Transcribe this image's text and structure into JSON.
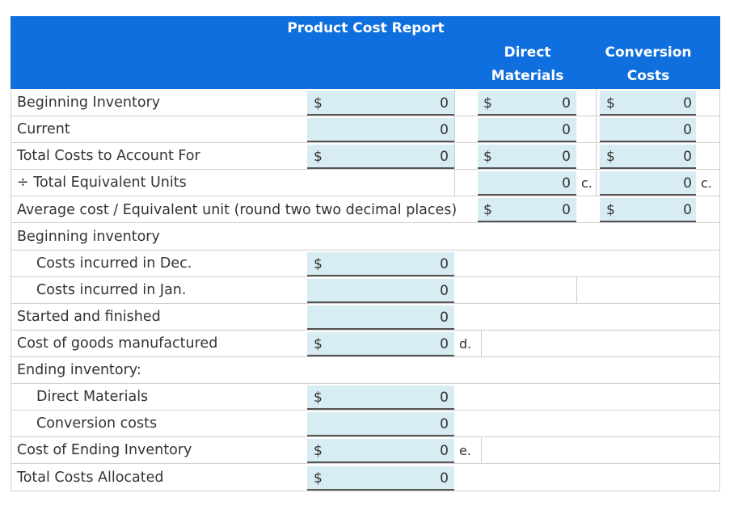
{
  "header": {
    "title": "Product Cost Report",
    "direct_materials_line1": "Direct",
    "direct_materials_line2": "Materials",
    "conversion_costs_line1": "Conversion",
    "conversion_costs_line2": "Costs"
  },
  "currency_symbol": "$",
  "rows": {
    "beginning_inventory": {
      "label": "Beginning Inventory",
      "total": "0",
      "direct_materials": "0",
      "conversion_costs": "0"
    },
    "current": {
      "label": "Current",
      "total": "0",
      "direct_materials": "0",
      "conversion_costs": "0"
    },
    "total_costs_to_account_for": {
      "label": "Total Costs to Account For",
      "total": "0",
      "direct_materials": "0",
      "conversion_costs": "0"
    },
    "total_equivalent_units": {
      "label": "÷ Total Equivalent Units",
      "direct_materials": "0",
      "direct_materials_mark": "c.",
      "conversion_costs": "0",
      "conversion_costs_mark": "c."
    },
    "average_cost": {
      "label": "Average cost / Equivalent unit (round two two decimal places)",
      "direct_materials": "0",
      "conversion_costs": "0"
    },
    "beginning_inventory_section": {
      "label": "Beginning inventory"
    },
    "costs_incurred_dec": {
      "label": "Costs incurred in Dec.",
      "total": "0"
    },
    "costs_incurred_jan": {
      "label": "Costs incurred in Jan.",
      "total": "0"
    },
    "started_and_finished": {
      "label": "Started and finished",
      "total": "0"
    },
    "cost_of_goods_manufactured": {
      "label": "Cost of goods manufactured",
      "total": "0",
      "mark": "d."
    },
    "ending_inventory_section": {
      "label": "Ending inventory:"
    },
    "ending_direct_materials": {
      "label": "Direct Materials",
      "total": "0"
    },
    "ending_conversion_costs": {
      "label": "Conversion costs",
      "total": "0"
    },
    "cost_of_ending_inventory": {
      "label": "Cost of Ending Inventory",
      "total": "0",
      "mark": "e."
    },
    "total_costs_allocated": {
      "label": "Total Costs Allocated",
      "total": "0"
    }
  },
  "colors": {
    "header_blue": "#0f6fde",
    "input_fill": "#d8ecf3",
    "grid_line": "#cfcfcf"
  }
}
